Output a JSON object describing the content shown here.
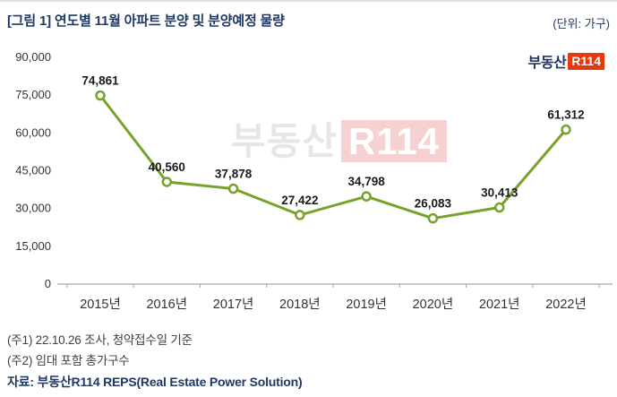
{
  "header": {
    "title": "[그림 1] 연도별 11월 아파트 분양 및 분양예정 물량",
    "unit_label": "(단위: 가구)"
  },
  "logo": {
    "brand": "부동산",
    "mark": "R114"
  },
  "watermark": {
    "part1": "부동산",
    "part2": "R114"
  },
  "chart_data": {
    "type": "line",
    "title": "연도별 11월 아파트 분양 및 분양예정 물량",
    "unit": "가구",
    "categories": [
      "2015년",
      "2016년",
      "2017년",
      "2018년",
      "2019년",
      "2020년",
      "2021년",
      "2022년"
    ],
    "values": [
      74861,
      40560,
      37878,
      27422,
      34798,
      26083,
      30413,
      61312
    ],
    "value_labels": [
      "74,861",
      "40,560",
      "37,878",
      "27,422",
      "34,798",
      "26,083",
      "30,413",
      "61,312"
    ],
    "ylim": [
      0,
      90000
    ],
    "ytick_step": 15000,
    "ytick_labels": [
      "0",
      "15,000",
      "30,000",
      "45,000",
      "60,000",
      "75,000",
      "90,000"
    ],
    "grid": false,
    "legend": "none",
    "xlabel": "",
    "ylabel": ""
  },
  "footer": {
    "note1": "(주1) 22.10.26 조사, 청약접수일 기준",
    "note2": "(주2) 임대 포함 총가구수",
    "source": "자료: 부동산R114 REPS(Real Estate Power Solution)"
  },
  "colors": {
    "title_navy": "#1F3864",
    "line_green": "#76A32A",
    "marker_fill": "#FFFFFF",
    "axis_text": "#333333",
    "axis_line": "#A6A6A6",
    "value_label": "#1A1A1A",
    "note_text": "#404040",
    "logo_red": "#E8380D",
    "watermark_gray": "#E2E2E2",
    "watermark_pink": "#F5C9C9"
  }
}
